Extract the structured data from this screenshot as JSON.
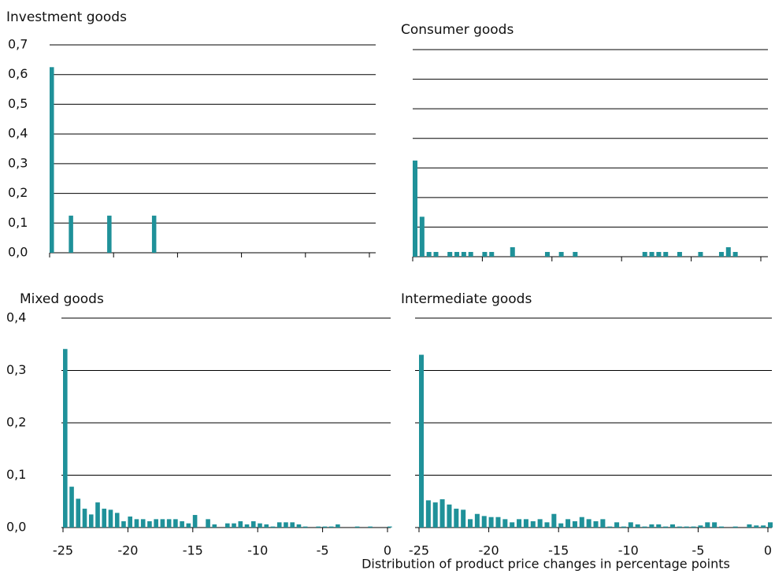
{
  "chart_data": [
    {
      "type": "bar",
      "title": "Investment goods",
      "color": "#1f9199",
      "x": [
        -25,
        -23.5,
        -20.5,
        -17
      ],
      "values": [
        0.625,
        0.125,
        0.125,
        0.125
      ],
      "xlim": [
        -25,
        0
      ],
      "xticks": [
        -25,
        -20,
        -15,
        -10,
        -5,
        0
      ],
      "xtick_labels": false,
      "ylim": [
        0,
        0.7
      ],
      "yticks": [
        {
          "value": 0,
          "label": "0,0"
        },
        {
          "value": 0.1,
          "label": "0,1"
        },
        {
          "value": 0.2,
          "label": "0,2"
        },
        {
          "value": 0.3,
          "label": "0,3"
        },
        {
          "value": 0.4,
          "label": "0,4"
        },
        {
          "value": 0.5,
          "label": "0,5"
        },
        {
          "value": 0.6,
          "label": "0,6"
        },
        {
          "value": 0.7,
          "label": "0,7"
        }
      ],
      "ytick_labels": true,
      "grid": true
    },
    {
      "type": "bar",
      "title": "Consumer goods",
      "color": "#1f9199",
      "x": [
        -25,
        -24.5,
        -24,
        -23.5,
        -22.5,
        -22,
        -21.5,
        -21,
        -20,
        -19.5,
        -18,
        -15.5,
        -14.5,
        -13.5,
        -8.5,
        -8,
        -7.5,
        -7,
        -6,
        -4.5,
        -3,
        -2.5,
        -2
      ],
      "values": [
        0.325,
        0.135,
        0.016,
        0.016,
        0.016,
        0.016,
        0.016,
        0.016,
        0.016,
        0.016,
        0.032,
        0.016,
        0.016,
        0.016,
        0.016,
        0.016,
        0.016,
        0.016,
        0.016,
        0.016,
        0.016,
        0.032,
        0.016
      ],
      "xlim": [
        -25,
        0
      ],
      "xticks": [
        -25,
        -20,
        -15,
        -10,
        -5,
        0
      ],
      "xtick_labels": false,
      "ylim": [
        0,
        0.7
      ],
      "yticks": [
        0,
        0.1,
        0.2,
        0.3,
        0.4,
        0.5,
        0.6,
        0.7
      ],
      "ytick_labels": false,
      "grid": true
    },
    {
      "type": "bar",
      "title": "Mixed goods",
      "color": "#1f9199",
      "x": [
        -25,
        -24.5,
        -24,
        -23.5,
        -23,
        -22.5,
        -22,
        -21.5,
        -21,
        -20.5,
        -20,
        -19.5,
        -19,
        -18.5,
        -18,
        -17.5,
        -17,
        -16.5,
        -16,
        -15.5,
        -15,
        -14.5,
        -14,
        -13.5,
        -13,
        -12.5,
        -12,
        -11.5,
        -11,
        -10.5,
        -10,
        -9.5,
        -9,
        -8.5,
        -8,
        -7.5,
        -7,
        -6.5,
        -6,
        -5.5,
        -5,
        -4.5,
        -4,
        -3.5,
        -3,
        -2.5,
        -2,
        -1.5,
        -1,
        -0.5,
        0
      ],
      "values": [
        0.341,
        0.078,
        0.055,
        0.036,
        0.025,
        0.048,
        0.036,
        0.034,
        0.028,
        0.012,
        0.021,
        0.016,
        0.016,
        0.012,
        0.016,
        0.016,
        0.016,
        0.016,
        0.012,
        0.008,
        0.024,
        0,
        0.016,
        0.006,
        0,
        0.008,
        0.008,
        0.012,
        0.006,
        0.012,
        0.008,
        0.006,
        0.002,
        0.01,
        0.01,
        0.01,
        0.006,
        0.002,
        0,
        0.002,
        0.002,
        0.002,
        0.006,
        0,
        0,
        0.002,
        0,
        0.002,
        0,
        0,
        0.002
      ],
      "xlim": [
        -25,
        0
      ],
      "xticks": [
        -25,
        -20,
        -15,
        -10,
        -5,
        0
      ],
      "xtick_labels": true,
      "ylim": [
        0,
        0.4
      ],
      "yticks": [
        {
          "value": 0,
          "label": "0,0"
        },
        {
          "value": 0.1,
          "label": "0,1"
        },
        {
          "value": 0.2,
          "label": "0,2"
        },
        {
          "value": 0.3,
          "label": "0,3"
        },
        {
          "value": 0.4,
          "label": "0,4"
        }
      ],
      "ytick_labels": true,
      "grid": true
    },
    {
      "type": "bar",
      "title": "Intermediate goods",
      "color": "#1f9199",
      "x": [
        -25,
        -24.5,
        -24,
        -23.5,
        -23,
        -22.5,
        -22,
        -21.5,
        -21,
        -20.5,
        -20,
        -19.5,
        -19,
        -18.5,
        -18,
        -17.5,
        -17,
        -16.5,
        -16,
        -15.5,
        -15,
        -14.5,
        -14,
        -13.5,
        -13,
        -12.5,
        -12,
        -11.5,
        -11,
        -10.5,
        -10,
        -9.5,
        -9,
        -8.5,
        -8,
        -7.5,
        -7,
        -6.5,
        -6,
        -5.5,
        -5,
        -4.5,
        -4,
        -3.5,
        -3,
        -2.5,
        -2,
        -1.5,
        -1,
        -0.5,
        0
      ],
      "values": [
        0.33,
        0.052,
        0.048,
        0.054,
        0.044,
        0.036,
        0.034,
        0.016,
        0.026,
        0.022,
        0.02,
        0.02,
        0.016,
        0.01,
        0.016,
        0.016,
        0.012,
        0.016,
        0.01,
        0.026,
        0.008,
        0.016,
        0.012,
        0.02,
        0.016,
        0.012,
        0.016,
        0.002,
        0.01,
        0.002,
        0.01,
        0.006,
        0.002,
        0.006,
        0.006,
        0.002,
        0.006,
        0.002,
        0.002,
        0.002,
        0.004,
        0.01,
        0.01,
        0.002,
        0,
        0.002,
        0,
        0.006,
        0.004,
        0.004,
        0.01
      ],
      "xlim": [
        -25,
        0
      ],
      "xticks": [
        -25,
        -20,
        -15,
        -10,
        -5,
        0
      ],
      "xtick_labels": true,
      "ylim": [
        0,
        0.4
      ],
      "yticks": [
        0,
        0.1,
        0.2,
        0.3,
        0.4
      ],
      "ytick_labels": false,
      "grid": true
    }
  ],
  "xlabel": "Distribution of product price changes in percentage points"
}
